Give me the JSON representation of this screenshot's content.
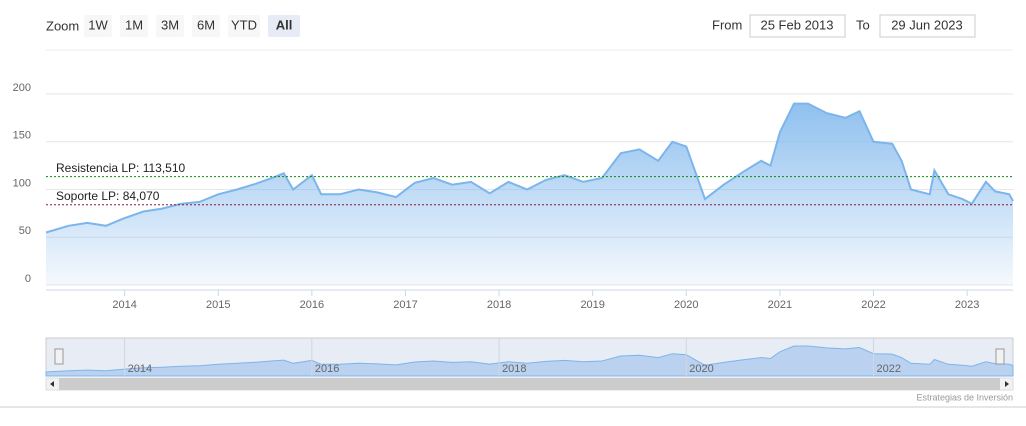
{
  "range_selector": {
    "label": "Zoom",
    "buttons": [
      "1W",
      "1M",
      "3M",
      "6M",
      "YTD",
      "All"
    ],
    "selected": 5,
    "from_label": "From",
    "from": "25 Feb 2013",
    "to_label": "To",
    "to": "29 Jun 2023"
  },
  "chart_data": {
    "type": "area",
    "x": [
      2013.16,
      2013.4,
      2013.6,
      2013.8,
      2014.0,
      2014.2,
      2014.4,
      2014.6,
      2014.8,
      2015.0,
      2015.2,
      2015.4,
      2015.6,
      2015.7,
      2015.8,
      2016.0,
      2016.1,
      2016.3,
      2016.5,
      2016.7,
      2016.9,
      2017.1,
      2017.3,
      2017.5,
      2017.7,
      2017.9,
      2018.1,
      2018.3,
      2018.5,
      2018.7,
      2018.9,
      2019.1,
      2019.3,
      2019.5,
      2019.7,
      2019.85,
      2020.0,
      2020.2,
      2020.4,
      2020.6,
      2020.8,
      2020.9,
      2021.0,
      2021.15,
      2021.3,
      2021.5,
      2021.7,
      2021.85,
      2022.0,
      2022.2,
      2022.3,
      2022.4,
      2022.6,
      2022.65,
      2022.8,
      2022.95,
      2023.05,
      2023.2,
      2023.3,
      2023.45,
      2023.49
    ],
    "series": [
      {
        "color": "#7cb5ec",
        "values": [
          55,
          62,
          65,
          62,
          70,
          77,
          80,
          85,
          87,
          95,
          100,
          106,
          113,
          117,
          100,
          115,
          95,
          95,
          100,
          97,
          92,
          107,
          112,
          105,
          108,
          96,
          108,
          100,
          110,
          115,
          108,
          112,
          138,
          142,
          130,
          150,
          145,
          90,
          105,
          118,
          130,
          125,
          160,
          190,
          190,
          180,
          175,
          182,
          150,
          148,
          130,
          100,
          95,
          120,
          95,
          90,
          85,
          108,
          98,
          95,
          88
        ]
      }
    ],
    "xlim": [
      2013.16,
      2023.49
    ],
    "xticks": [
      2014,
      2015,
      2016,
      2017,
      2018,
      2019,
      2020,
      2021,
      2022,
      2023
    ],
    "ylim": [
      0,
      250
    ],
    "yticks": [
      0,
      50,
      100,
      150,
      200
    ],
    "grid": true,
    "plot_lines": [
      {
        "value": 113.51,
        "label": "Resistencia LP: 113,510",
        "color": "#0a8a0a"
      },
      {
        "value": 84.07,
        "label": "Soporte LP: 84,070",
        "color": "#8b1a3a"
      }
    ],
    "navigator_xticks": [
      2014,
      2016,
      2018,
      2020,
      2022
    ]
  },
  "credits": "Estrategias de Inversión"
}
